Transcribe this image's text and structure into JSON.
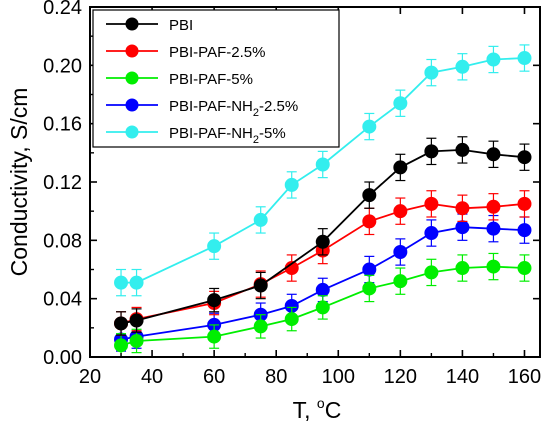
{
  "chart_data": {
    "type": "line",
    "xlabel": "T, ",
    "xlabel_unit": "oC",
    "ylabel": "Conductivity, S/cm",
    "xlim": [
      20,
      165
    ],
    "ylim": [
      0,
      0.24
    ],
    "xticks": [
      20,
      40,
      60,
      80,
      100,
      120,
      140,
      160
    ],
    "yticks": [
      0.0,
      0.04,
      0.08,
      0.12,
      0.16,
      0.2,
      0.24
    ],
    "ytick_labels": [
      "0.00",
      "0.04",
      "0.08",
      "0.12",
      "0.16",
      "0.20",
      "0.24"
    ],
    "legend_position": "top-left",
    "error_bars": true,
    "series": [
      {
        "name": "PBI",
        "color": "#000000",
        "x": [
          30,
          35,
          60,
          75,
          95,
          110,
          120,
          130,
          140,
          150,
          160
        ],
        "y": [
          0.023,
          0.025,
          0.039,
          0.049,
          0.079,
          0.111,
          0.13,
          0.141,
          0.142,
          0.139,
          0.137
        ],
        "err": [
          0.008,
          0.008,
          0.008,
          0.009,
          0.009,
          0.009,
          0.009,
          0.009,
          0.009,
          0.009,
          0.009
        ]
      },
      {
        "name": "PBI-PAF-2.5%",
        "color": "#ff0000",
        "x": [
          30,
          35,
          60,
          75,
          85,
          95,
          110,
          120,
          130,
          140,
          150,
          160
        ],
        "y": [
          0.023,
          0.026,
          0.037,
          0.05,
          0.061,
          0.073,
          0.093,
          0.1,
          0.105,
          0.102,
          0.103,
          0.105
        ],
        "err": [
          0.008,
          0.008,
          0.008,
          0.009,
          0.009,
          0.009,
          0.009,
          0.009,
          0.009,
          0.009,
          0.009,
          0.009
        ]
      },
      {
        "name": "PBI-PAF-5%",
        "color": "#00ee00",
        "x": [
          30,
          35,
          60,
          75,
          85,
          95,
          110,
          120,
          130,
          140,
          150,
          160
        ],
        "y": [
          0.008,
          0.011,
          0.014,
          0.021,
          0.026,
          0.034,
          0.047,
          0.052,
          0.058,
          0.061,
          0.062,
          0.061
        ],
        "err": [
          0.008,
          0.008,
          0.008,
          0.008,
          0.008,
          0.008,
          0.009,
          0.009,
          0.009,
          0.009,
          0.009,
          0.009
        ]
      },
      {
        "name": "PBI-PAF-NH2-2.5%",
        "name_base": "PBI-PAF-NH",
        "name_sub": "2",
        "name_tail": "-2.5%",
        "color": "#0000ff",
        "x": [
          30,
          35,
          60,
          75,
          85,
          95,
          110,
          120,
          130,
          140,
          150,
          160
        ],
        "y": [
          0.012,
          0.014,
          0.022,
          0.029,
          0.035,
          0.046,
          0.06,
          0.072,
          0.085,
          0.089,
          0.088,
          0.087
        ],
        "err": [
          0.008,
          0.008,
          0.008,
          0.008,
          0.008,
          0.008,
          0.009,
          0.009,
          0.009,
          0.009,
          0.009,
          0.009
        ]
      },
      {
        "name": "PBI-PAF-NH2-5%",
        "name_base": "PBI-PAF-NH",
        "name_sub": "2",
        "name_tail": "-5%",
        "color": "#33eeee",
        "x": [
          30,
          35,
          60,
          75,
          85,
          95,
          110,
          120,
          130,
          140,
          150,
          160
        ],
        "y": [
          0.051,
          0.051,
          0.076,
          0.094,
          0.118,
          0.132,
          0.158,
          0.174,
          0.195,
          0.199,
          0.204,
          0.205
        ],
        "err": [
          0.009,
          0.009,
          0.009,
          0.009,
          0.009,
          0.009,
          0.009,
          0.009,
          0.009,
          0.009,
          0.009,
          0.009
        ]
      }
    ]
  }
}
